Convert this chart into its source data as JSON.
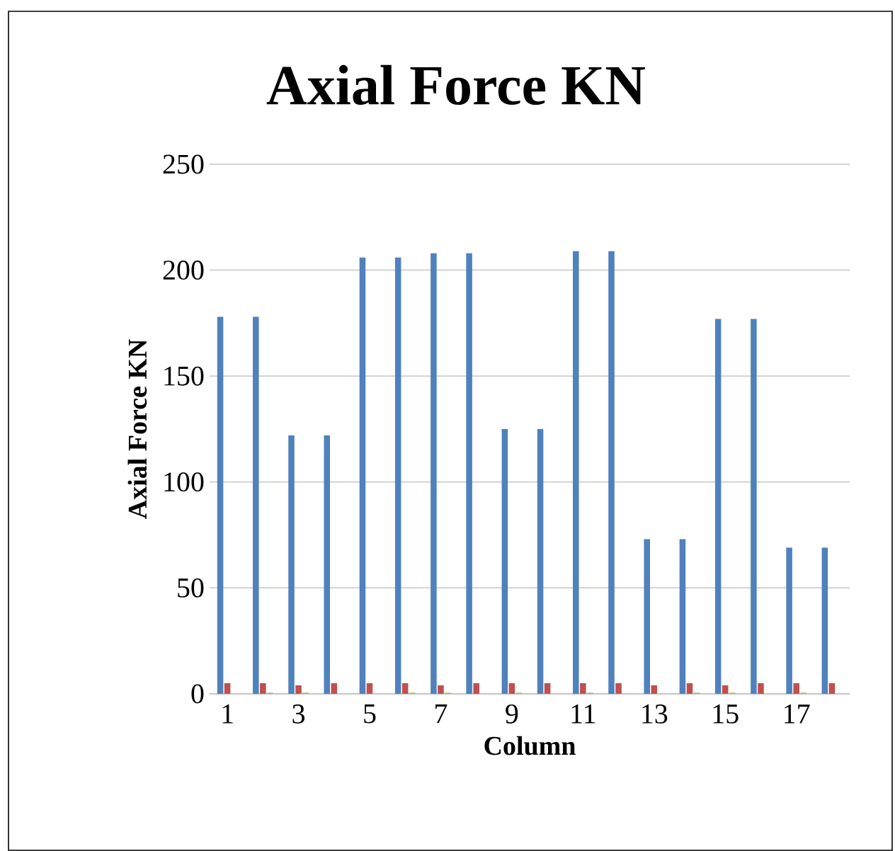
{
  "chart_data": {
    "type": "bar",
    "title": "Axial Force KN",
    "xlabel": "Column",
    "ylabel": "Axial Force KN",
    "categories": [
      "1",
      null,
      "3",
      null,
      "5",
      null,
      "7",
      null,
      "9",
      null,
      "11",
      null,
      "13",
      null,
      "15",
      null,
      "17",
      null
    ],
    "series": [
      {
        "color": "#4f81bd",
        "values": [
          178,
          178,
          122,
          122,
          206,
          206,
          208,
          208,
          125,
          125,
          209,
          209,
          73,
          73,
          177,
          177,
          69,
          69
        ]
      },
      {
        "color": "#c0504d",
        "values": [
          5,
          5,
          4,
          5,
          5,
          5,
          4,
          5,
          5,
          5,
          5,
          5,
          4,
          5,
          4,
          5,
          5,
          5
        ]
      },
      {
        "color": "#9bbb59",
        "values": [
          null,
          0.5,
          0.5,
          null,
          null,
          0.5,
          0.5,
          null,
          0.5,
          null,
          0.5,
          null,
          null,
          0.5,
          0.5,
          null,
          0.5,
          null
        ]
      }
    ],
    "ylim": [
      0,
      250
    ],
    "yticks": [
      0,
      50,
      100,
      150,
      200,
      250
    ],
    "grid": "y"
  }
}
